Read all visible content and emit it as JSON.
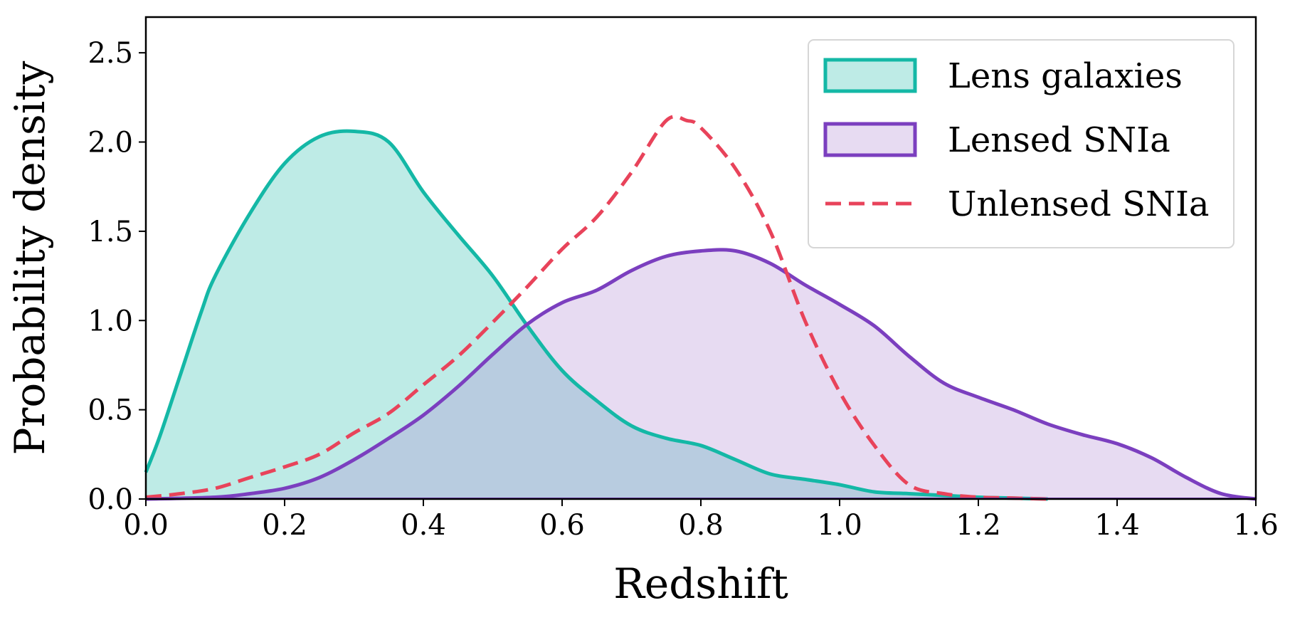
{
  "chart_data": {
    "type": "area",
    "xlabel": "Redshift",
    "ylabel": "Probability density",
    "xlim": [
      0.0,
      1.6
    ],
    "ylim": [
      0.0,
      2.7
    ],
    "xticks": [
      0.0,
      0.2,
      0.4,
      0.6,
      0.8,
      1.0,
      1.2,
      1.4,
      1.6
    ],
    "yticks": [
      0.0,
      0.5,
      1.0,
      1.5,
      2.0,
      2.5
    ],
    "xtick_labels": [
      "0.0",
      "0.2",
      "0.4",
      "0.6",
      "0.8",
      "1.0",
      "1.2",
      "1.4",
      "1.6"
    ],
    "ytick_labels": [
      "0.0",
      "0.5",
      "1.0",
      "1.5",
      "2.0",
      "2.5"
    ],
    "grid": false,
    "legend_position": "top-right",
    "series": [
      {
        "name": "Lens galaxies",
        "style": "filled",
        "color": "#14b8a6",
        "fill": "#14b8a6",
        "x": [
          0.0,
          0.02,
          0.05,
          0.08,
          0.1,
          0.15,
          0.2,
          0.25,
          0.3,
          0.35,
          0.4,
          0.45,
          0.5,
          0.55,
          0.6,
          0.65,
          0.7,
          0.75,
          0.8,
          0.85,
          0.9,
          0.95,
          1.0,
          1.05,
          1.1,
          1.15,
          1.2,
          1.25,
          1.3
        ],
        "y": [
          0.15,
          0.35,
          0.7,
          1.05,
          1.25,
          1.6,
          1.88,
          2.03,
          2.06,
          2.0,
          1.72,
          1.48,
          1.25,
          0.97,
          0.72,
          0.55,
          0.41,
          0.34,
          0.3,
          0.22,
          0.14,
          0.11,
          0.08,
          0.04,
          0.03,
          0.02,
          0.01,
          0.005,
          0.0
        ]
      },
      {
        "name": "Lensed SNIa",
        "style": "filled",
        "color": "#7b3fbf",
        "fill": "#a87fd0",
        "x": [
          0.0,
          0.1,
          0.15,
          0.2,
          0.25,
          0.3,
          0.35,
          0.4,
          0.45,
          0.5,
          0.55,
          0.6,
          0.65,
          0.7,
          0.75,
          0.8,
          0.85,
          0.9,
          0.95,
          1.0,
          1.05,
          1.1,
          1.15,
          1.2,
          1.25,
          1.3,
          1.35,
          1.4,
          1.45,
          1.5,
          1.55,
          1.6
        ],
        "y": [
          0.0,
          0.01,
          0.03,
          0.06,
          0.12,
          0.22,
          0.34,
          0.47,
          0.63,
          0.81,
          0.98,
          1.1,
          1.17,
          1.28,
          1.36,
          1.39,
          1.39,
          1.32,
          1.2,
          1.09,
          0.97,
          0.8,
          0.65,
          0.57,
          0.5,
          0.42,
          0.36,
          0.31,
          0.23,
          0.12,
          0.03,
          0.0
        ]
      },
      {
        "name": "Unlensed SNIa",
        "style": "dashed",
        "color": "#e8435a",
        "x": [
          0.0,
          0.05,
          0.1,
          0.15,
          0.2,
          0.25,
          0.3,
          0.35,
          0.4,
          0.45,
          0.5,
          0.55,
          0.6,
          0.65,
          0.7,
          0.75,
          0.78,
          0.8,
          0.85,
          0.9,
          0.95,
          1.0,
          1.05,
          1.1,
          1.15,
          1.2,
          1.25,
          1.3
        ],
        "y": [
          0.01,
          0.03,
          0.06,
          0.12,
          0.18,
          0.25,
          0.37,
          0.48,
          0.64,
          0.8,
          0.99,
          1.19,
          1.4,
          1.58,
          1.83,
          2.12,
          2.12,
          2.08,
          1.85,
          1.5,
          1.0,
          0.6,
          0.3,
          0.08,
          0.03,
          0.01,
          0.005,
          0.0
        ]
      }
    ]
  }
}
